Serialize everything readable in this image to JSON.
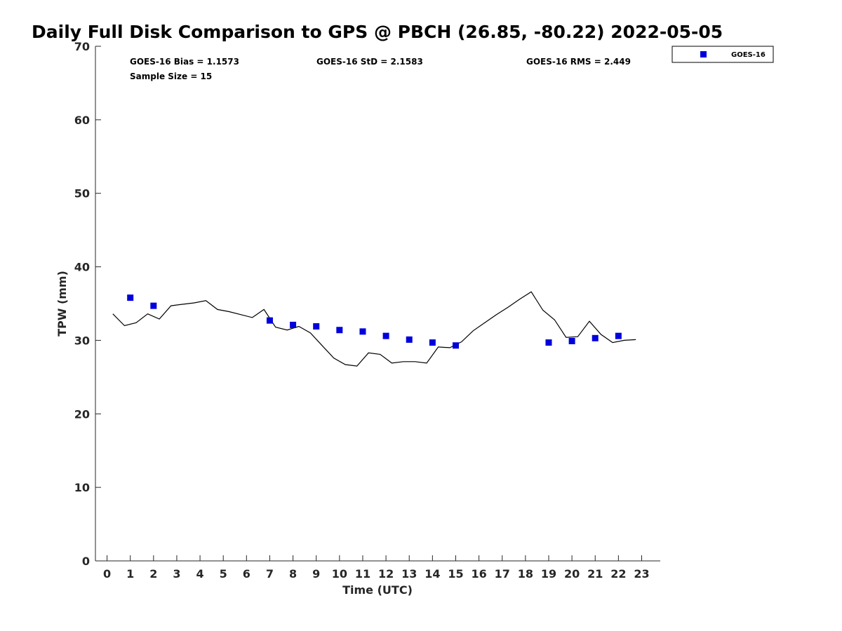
{
  "chart_data": {
    "type": "scatter",
    "title": "Daily Full Disk Comparison to GPS @ PBCH (26.85, -80.22) 2022-05-05",
    "xlabel": "Time (UTC)",
    "ylabel": "TPW (mm)",
    "xlim": [
      -0.5,
      23.8
    ],
    "ylim": [
      0,
      70
    ],
    "xticks": [
      0,
      1,
      2,
      3,
      4,
      5,
      6,
      7,
      8,
      9,
      10,
      11,
      12,
      13,
      14,
      15,
      16,
      17,
      18,
      19,
      20,
      21,
      22,
      23
    ],
    "yticks": [
      0,
      10,
      20,
      30,
      40,
      50,
      60,
      70
    ],
    "grid": false,
    "legend_position": "top-right (outside plot)",
    "stats": {
      "bias": "GOES-16 Bias = 1.1573",
      "std": "GOES-16 StD = 2.1583",
      "rms": "GOES-16 RMS = 2.449",
      "sample_size": "Sample Size = 15"
    },
    "series": [
      {
        "name": "GOES-16",
        "kind": "scatter",
        "marker": "square",
        "color": "#0000dd",
        "points": [
          [
            1,
            35.8
          ],
          [
            2,
            34.7
          ],
          [
            7,
            32.7
          ],
          [
            8,
            32.1
          ],
          [
            9,
            31.9
          ],
          [
            10,
            31.4
          ],
          [
            11,
            31.2
          ],
          [
            12,
            30.6
          ],
          [
            13,
            30.1
          ],
          [
            14,
            29.7
          ],
          [
            15,
            29.3
          ],
          [
            19,
            29.7
          ],
          [
            20,
            29.9
          ],
          [
            21,
            30.3
          ],
          [
            22,
            30.6
          ]
        ]
      },
      {
        "kind": "line",
        "color": "#000000",
        "points": [
          [
            0.25,
            33.6
          ],
          [
            0.75,
            32.0
          ],
          [
            1.25,
            32.4
          ],
          [
            1.75,
            33.6
          ],
          [
            2.25,
            32.9
          ],
          [
            2.75,
            34.7
          ],
          [
            3.25,
            34.9
          ],
          [
            3.75,
            35.1
          ],
          [
            4.25,
            35.4
          ],
          [
            4.75,
            34.2
          ],
          [
            5.25,
            33.9
          ],
          [
            5.75,
            33.5
          ],
          [
            6.25,
            33.1
          ],
          [
            6.75,
            34.2
          ],
          [
            7.25,
            31.8
          ],
          [
            7.75,
            31.4
          ],
          [
            8.25,
            31.9
          ],
          [
            8.75,
            31.0
          ],
          [
            9.25,
            29.3
          ],
          [
            9.75,
            27.6
          ],
          [
            10.25,
            26.7
          ],
          [
            10.75,
            26.5
          ],
          [
            11.25,
            28.3
          ],
          [
            11.75,
            28.1
          ],
          [
            12.25,
            26.9
          ],
          [
            12.75,
            27.1
          ],
          [
            13.25,
            27.1
          ],
          [
            13.75,
            26.9
          ],
          [
            14.25,
            29.1
          ],
          [
            14.75,
            29.0
          ],
          [
            15.25,
            29.8
          ],
          [
            15.75,
            31.3
          ],
          [
            16.25,
            32.4
          ],
          [
            16.75,
            33.5
          ],
          [
            17.25,
            34.5
          ],
          [
            17.75,
            35.6
          ],
          [
            18.25,
            36.6
          ],
          [
            18.75,
            34.1
          ],
          [
            19.25,
            32.8
          ],
          [
            19.75,
            30.4
          ],
          [
            20.25,
            30.5
          ],
          [
            20.75,
            32.6
          ],
          [
            21.25,
            30.8
          ],
          [
            21.75,
            29.7
          ],
          [
            22.25,
            30.0
          ],
          [
            22.75,
            30.1
          ]
        ]
      }
    ]
  }
}
